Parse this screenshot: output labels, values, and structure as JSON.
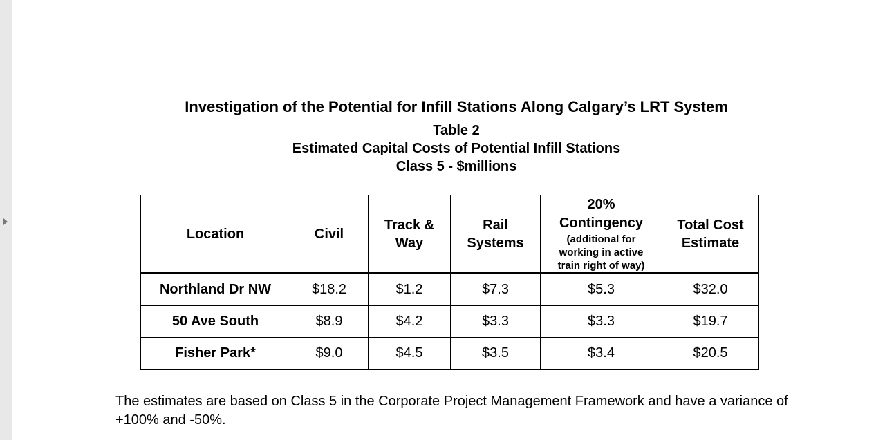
{
  "document": {
    "title": "Investigation of the Potential for Infill Stations Along Calgary’s LRT System",
    "table_label": "Table 2",
    "table_title": "Estimated Capital Costs of Potential Infill Stations",
    "table_subtitle": "Class 5 - $millions",
    "table": {
      "headers": [
        "Location",
        "Civil",
        "Track & Way",
        "Rail Systems",
        "20% Contingency",
        "Total Cost Estimate"
      ],
      "contingency_note": "(additional for working in active train right of way)",
      "rows": [
        [
          "Northland Dr NW",
          "$18.2",
          "$1.2",
          "$7.3",
          "$5.3",
          "$32.0"
        ],
        [
          "50 Ave South",
          "$8.9",
          "$4.2",
          "$3.3",
          "$3.3",
          "$19.7"
        ],
        [
          "Fisher Park*",
          "$9.0",
          "$4.5",
          "$3.5",
          "$3.4",
          "$20.5"
        ]
      ]
    },
    "note": "The estimates are based on Class 5 in the Corporate Project Management Framework and have a variance of +100% and -50%."
  }
}
